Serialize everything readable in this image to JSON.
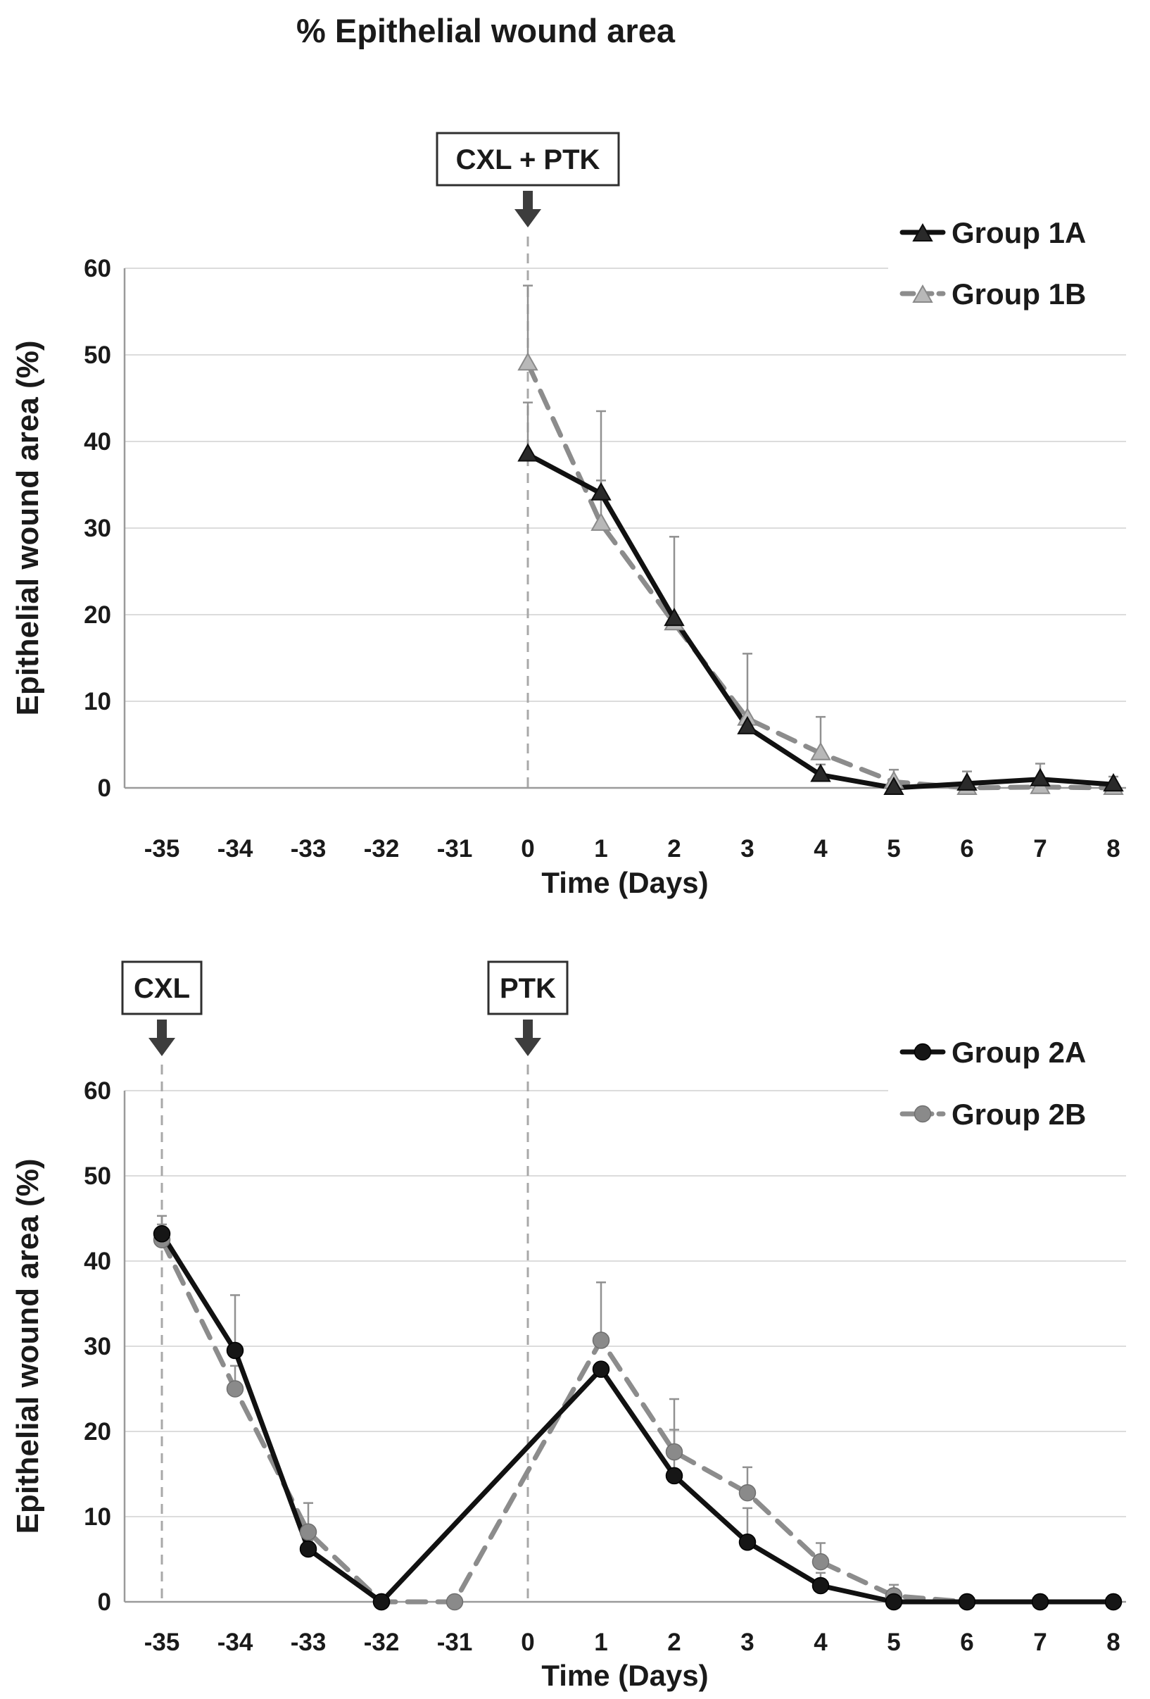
{
  "figure": {
    "title": "% Epithelial wound area"
  },
  "chart_data": [
    {
      "id": "top",
      "type": "line",
      "xlabel": "Time (Days)",
      "ylabel": "Epithelial wound area (%)",
      "ylim": [
        0,
        60
      ],
      "y_ticks": [
        0,
        10,
        20,
        30,
        40,
        50,
        60
      ],
      "x_ticks": [
        -35,
        -34,
        -33,
        -32,
        -31,
        0,
        1,
        2,
        3,
        4,
        5,
        6,
        7,
        8
      ],
      "grid": true,
      "legend_position": "top-right",
      "events": [
        {
          "label": "CXL + PTK",
          "x": 0
        }
      ],
      "series": [
        {
          "name": "Group 1B",
          "marker": "triangle",
          "line": "dashed",
          "line_color": "#8c8c8c",
          "marker_fill": "#b8b8b8",
          "marker_edge": "#8a8a8a",
          "x": [
            0,
            1,
            2,
            3,
            4,
            5,
            6,
            7,
            8
          ],
          "y": [
            49,
            30.5,
            19,
            8,
            4,
            0.7,
            0,
            0.1,
            0
          ],
          "err_up": [
            9,
            5,
            0,
            7.5,
            4.2,
            1.4,
            0,
            0,
            0
          ]
        },
        {
          "name": "Group 1A",
          "marker": "triangle",
          "line": "solid",
          "line_color": "#111111",
          "marker_fill": "#2a2a2a",
          "marker_edge": "#0d0d0d",
          "x": [
            0,
            1,
            2,
            3,
            4,
            5,
            6,
            7,
            8
          ],
          "y": [
            38.5,
            34,
            19.5,
            7,
            1.5,
            0,
            0.5,
            1,
            0.4
          ],
          "err_up": [
            6,
            9.5,
            9.5,
            0,
            1.2,
            0,
            1.4,
            1.8,
            0.9
          ]
        }
      ],
      "legend_order": [
        "Group 1A",
        "Group 1B"
      ]
    },
    {
      "id": "bottom",
      "type": "line",
      "xlabel": "Time (Days)",
      "ylabel": "Epithelial wound area (%)",
      "ylim": [
        0,
        60
      ],
      "y_ticks": [
        0,
        10,
        20,
        30,
        40,
        50,
        60
      ],
      "x_ticks": [
        -35,
        -34,
        -33,
        -32,
        -31,
        0,
        1,
        2,
        3,
        4,
        5,
        6,
        7,
        8
      ],
      "grid": true,
      "legend_position": "top-right",
      "events": [
        {
          "label": "CXL",
          "x": -35
        },
        {
          "label": "PTK",
          "x": 0
        }
      ],
      "series": [
        {
          "name": "Group 2B",
          "marker": "circle",
          "line": "dashed",
          "line_color": "#8c8c8c",
          "marker_fill": "#8a8a8a",
          "marker_edge": "#6f6f6f",
          "x": [
            -35,
            -34,
            -33,
            -32,
            -31,
            1,
            2,
            3,
            4,
            5,
            6,
            7,
            8
          ],
          "y": [
            42.5,
            25,
            8.2,
            0,
            0,
            30.7,
            17.6,
            12.8,
            4.7,
            0.7,
            0,
            0,
            0
          ],
          "err_up": [
            1.8,
            2.7,
            3.4,
            0,
            0,
            6.8,
            6.2,
            3,
            2.2,
            1.3,
            0,
            0,
            0
          ]
        },
        {
          "name": "Group 2A",
          "marker": "circle",
          "line": "solid",
          "line_color": "#111111",
          "marker_fill": "#161616",
          "marker_edge": "#000000",
          "x": [
            -35,
            -34,
            -33,
            -32,
            1,
            2,
            3,
            4,
            5,
            6,
            7,
            8
          ],
          "y": [
            43.2,
            29.5,
            6.2,
            0,
            27.3,
            14.8,
            7,
            1.9,
            0,
            0,
            0,
            0
          ],
          "err_up": [
            2.1,
            6.5,
            1,
            0,
            0,
            5.4,
            4,
            1.5,
            0,
            0,
            0,
            0
          ]
        }
      ],
      "legend_order": [
        "Group 2A",
        "Group 2B"
      ]
    }
  ],
  "style_colors": {
    "gridline": "#dcdcdc",
    "axis": "#9a9a9a",
    "event_dash": "#a8a8a8",
    "arrow": "#3d3d3d",
    "error_bar": "#919191",
    "text": "#1a1a1a"
  }
}
